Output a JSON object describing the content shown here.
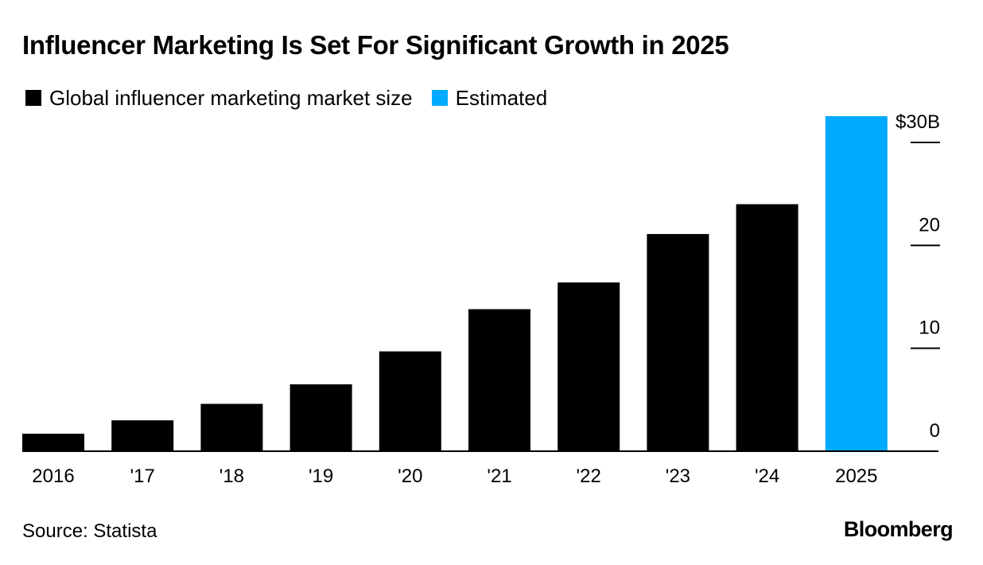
{
  "title": "Influencer Marketing Is Set For Significant Growth in 2025",
  "legend": [
    {
      "label": "Global influencer marketing market size",
      "color": "#000000"
    },
    {
      "label": "Estimated",
      "color": "#00aaff"
    }
  ],
  "source": "Source: Statista",
  "logo": "Bloomberg",
  "chart_data": {
    "type": "bar",
    "title": "Influencer Marketing Is Set For Significant Growth in 2025",
    "xlabel": "",
    "ylabel": "",
    "categories": [
      "2016",
      "'17",
      "'18",
      "'19",
      "'20",
      "'21",
      "'22",
      "'23",
      "'24",
      "2025"
    ],
    "series": [
      {
        "name": "Global influencer marketing market size",
        "values": [
          1.7,
          3.0,
          4.6,
          6.5,
          9.7,
          13.8,
          16.4,
          21.1,
          24.0,
          null
        ],
        "color": "#000000"
      },
      {
        "name": "Estimated",
        "values": [
          null,
          null,
          null,
          null,
          null,
          null,
          null,
          null,
          null,
          32.55
        ],
        "color": "#00aaff"
      }
    ],
    "ylim": [
      0,
      32.55
    ],
    "yticks": [
      0,
      10,
      20,
      30
    ],
    "ytick_labels": [
      "0",
      "10",
      "20",
      "$30B"
    ],
    "y_axis_position": "right",
    "grid": false,
    "legend_position": "top-left"
  }
}
